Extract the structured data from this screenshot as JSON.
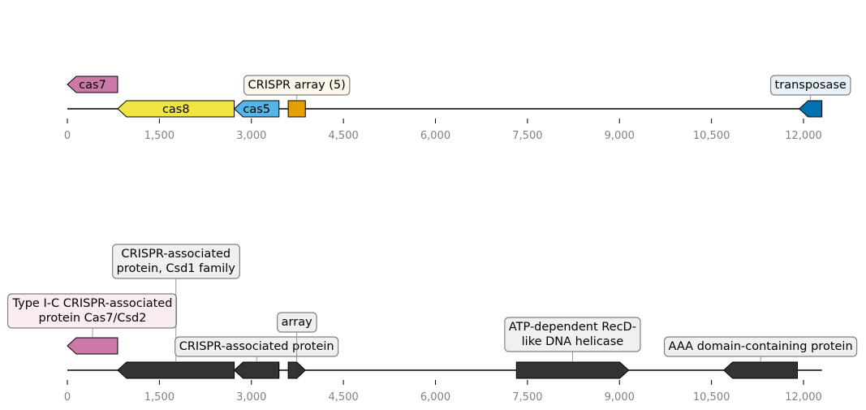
{
  "tracks": [
    {
      "axis": {
        "min": 0,
        "max": 12300,
        "ticks": [
          0,
          1500,
          3000,
          4500,
          6000,
          7500,
          9000,
          10500,
          12000
        ],
        "tick_labels": [
          "0",
          "1,500",
          "3,000",
          "4,500",
          "6,000",
          "7,500",
          "9,000",
          "10,500",
          "12,000"
        ]
      },
      "features": [
        {
          "name": "cas7",
          "start": 0,
          "end": 820,
          "strand": -1,
          "color": "#cc79a7",
          "label_mode": "inside"
        },
        {
          "name": "cas8",
          "start": 820,
          "end": 2720,
          "strand": -1,
          "color": "#f0e442",
          "label_mode": "inside"
        },
        {
          "name": "cas5",
          "start": 2720,
          "end": 3450,
          "strand": -1,
          "color": "#56b4e9",
          "label_mode": "inside"
        },
        {
          "name": "CRISPR array (5)",
          "start": 3600,
          "end": 3880,
          "strand": 0,
          "color": "#e69f00",
          "label_mode": "box",
          "box_fill": "#fdf6ea"
        },
        {
          "name": "transposase",
          "start": 11930,
          "end": 12300,
          "strand": -1,
          "color": "#0072b2",
          "label_mode": "box",
          "box_fill": "#e8f1f8"
        }
      ]
    },
    {
      "axis": {
        "min": 0,
        "max": 12300,
        "ticks": [
          0,
          1500,
          3000,
          4500,
          6000,
          7500,
          9000,
          10500,
          12000
        ],
        "tick_labels": [
          "0",
          "1,500",
          "3,000",
          "4,500",
          "6,000",
          "7,500",
          "9,000",
          "10,500",
          "12,000"
        ]
      },
      "features": [
        {
          "name": "Type I-C CRISPR-associated\nprotein Cas7/Csd2",
          "start": 0,
          "end": 820,
          "strand": -1,
          "color": "#cc79a7",
          "label_mode": "box",
          "box_fill": "#f9ecf3"
        },
        {
          "name": "CRISPR-associated\nprotein, Csd1 family",
          "start": 820,
          "end": 2720,
          "strand": -1,
          "color": "#333333",
          "label_mode": "box",
          "box_fill": "#f0f0f0"
        },
        {
          "name": "CRISPR-associated protein",
          "start": 2720,
          "end": 3450,
          "strand": -1,
          "color": "#333333",
          "label_mode": "box",
          "box_fill": "#f0f0f0"
        },
        {
          "name": "array",
          "start": 3600,
          "end": 3880,
          "strand": 1,
          "color": "#333333",
          "label_mode": "box",
          "box_fill": "#f0f0f0"
        },
        {
          "name": "ATP-dependent RecD-\nlike DNA helicase",
          "start": 7320,
          "end": 9150,
          "strand": 1,
          "color": "#333333",
          "label_mode": "box",
          "box_fill": "#f0f0f0"
        },
        {
          "name": "AAA domain-containing protein",
          "start": 10700,
          "end": 11900,
          "strand": -1,
          "color": "#333333",
          "label_mode": "box",
          "box_fill": "#f0f0f0"
        }
      ]
    }
  ]
}
